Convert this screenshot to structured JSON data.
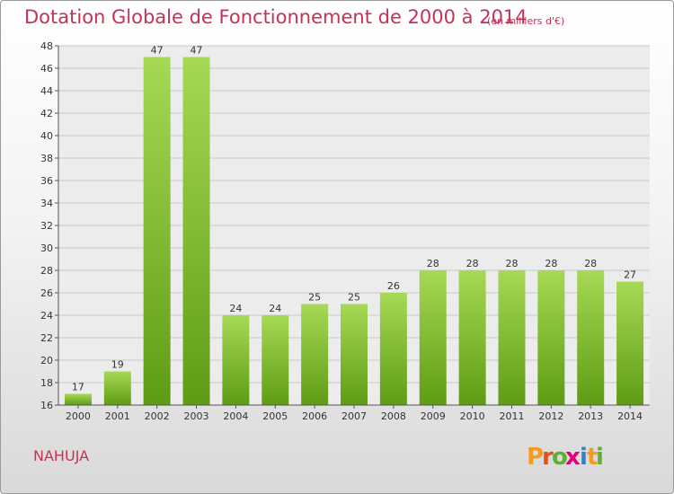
{
  "header": {
    "title": "Dotation Globale de Fonctionnement de 2000 à 2014",
    "unit": "(en milliers d'€)"
  },
  "commune": "NAHUJA",
  "logo": {
    "text": "Proxiti",
    "colors": [
      "#f39c1e",
      "#e94e1b",
      "#5eb030",
      "#e2007a",
      "#2e86c8",
      "#f39c1e",
      "#5eb030"
    ]
  },
  "colors": {
    "accent": "#c63256",
    "bar_top": "#a6d955",
    "bar_bottom": "#5e9c14",
    "grid": "#c8c8c8"
  },
  "chart_data": {
    "type": "bar",
    "title": "Dotation Globale de Fonctionnement de 2000 à 2014",
    "subtitle": "(en milliers d'€)",
    "xlabel": "",
    "ylabel": "",
    "categories": [
      "2000",
      "2001",
      "2002",
      "2003",
      "2004",
      "2005",
      "2006",
      "2007",
      "2008",
      "2009",
      "2010",
      "2011",
      "2012",
      "2013",
      "2014"
    ],
    "values": [
      17,
      19,
      47,
      47,
      24,
      24,
      25,
      25,
      26,
      28,
      28,
      28,
      28,
      28,
      27
    ],
    "ylim": [
      16,
      48
    ],
    "yticks": [
      16,
      18,
      20,
      22,
      24,
      26,
      28,
      30,
      32,
      34,
      36,
      38,
      40,
      42,
      44,
      46,
      48
    ],
    "grid": "horizontal",
    "data_labels": true
  }
}
